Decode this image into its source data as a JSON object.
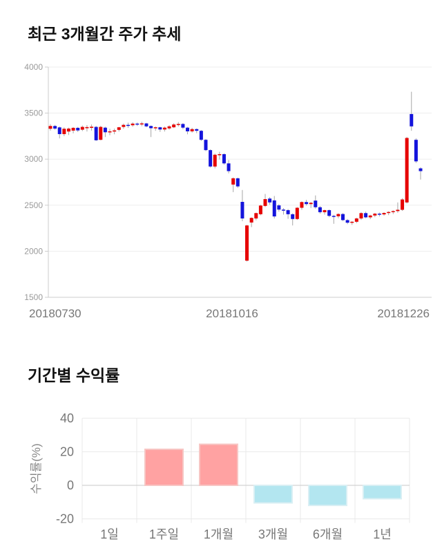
{
  "page": {
    "background": "#ffffff"
  },
  "chart_data": [
    {
      "type": "candlestick",
      "title": "최근 3개월간 주가 추세",
      "ylim": [
        1500,
        4000
      ],
      "y_ticks": [
        4000,
        3500,
        3000,
        2500,
        2000,
        1500
      ],
      "x_tick_labels": [
        "20180730",
        "20181016",
        "20181226"
      ],
      "grid": true,
      "up_color": "#e60000",
      "down_color": "#1414dc",
      "wick_color": "#a6a6a6",
      "grid_color": "#ededed",
      "axis_color": "#cccccc",
      "y_tick_color": "#999999",
      "x_tick_color": "#777777",
      "candles_ohlc": [
        [
          3330,
          3380,
          3310,
          3360
        ],
        [
          3360,
          3372,
          3318,
          3332
        ],
        [
          3345,
          3355,
          3225,
          3272
        ],
        [
          3272,
          3345,
          3250,
          3330
        ],
        [
          3300,
          3342,
          3262,
          3332
        ],
        [
          3310,
          3348,
          3280,
          3340
        ],
        [
          3340,
          3350,
          3295,
          3312
        ],
        [
          3320,
          3365,
          3305,
          3350
        ],
        [
          3336,
          3370,
          3300,
          3348
        ],
        [
          3340,
          3376,
          3310,
          3352
        ],
        [
          3350,
          3360,
          3198,
          3205
        ],
        [
          3210,
          3362,
          3205,
          3350
        ],
        [
          3342,
          3352,
          3240,
          3292
        ],
        [
          3292,
          3330,
          3260,
          3302
        ],
        [
          3300,
          3332,
          3270,
          3312
        ],
        [
          3318,
          3350,
          3300,
          3346
        ],
        [
          3350,
          3386,
          3330,
          3372
        ],
        [
          3372,
          3396,
          3340,
          3368
        ],
        [
          3368,
          3400,
          3352,
          3386
        ],
        [
          3386,
          3398,
          3360,
          3378
        ],
        [
          3378,
          3406,
          3358,
          3388
        ],
        [
          3388,
          3394,
          3346,
          3356
        ],
        [
          3360,
          3366,
          3240,
          3336
        ],
        [
          3336,
          3355,
          3308,
          3346
        ],
        [
          3346,
          3352,
          3296,
          3322
        ],
        [
          3322,
          3354,
          3300,
          3342
        ],
        [
          3334,
          3368,
          3320,
          3356
        ],
        [
          3346,
          3390,
          3338,
          3376
        ],
        [
          3376,
          3402,
          3354,
          3382
        ],
        [
          3382,
          3392,
          3326,
          3342
        ],
        [
          3342,
          3350,
          3270,
          3302
        ],
        [
          3302,
          3340,
          3288,
          3326
        ],
        [
          3326,
          3334,
          3282,
          3308
        ],
        [
          3308,
          3316,
          3198,
          3210
        ],
        [
          3210,
          3218,
          3088,
          3098
        ],
        [
          3098,
          3106,
          2908,
          2920
        ],
        [
          2920,
          3060,
          2900,
          3048
        ],
        [
          3048,
          3080,
          2996,
          3054
        ],
        [
          3054,
          3064,
          2940,
          2954
        ],
        [
          2954,
          2990,
          2846,
          2870
        ],
        [
          2724,
          2802,
          2642,
          2792
        ],
        [
          2792,
          2800,
          2688,
          2704
        ],
        [
          2536,
          2665,
          2326,
          2356
        ],
        [
          1898,
          2286,
          1888,
          2280
        ],
        [
          2312,
          2368,
          2262,
          2362
        ],
        [
          2356,
          2420,
          2336,
          2414
        ],
        [
          2402,
          2505,
          2390,
          2496
        ],
        [
          2492,
          2622,
          2480,
          2566
        ],
        [
          2572,
          2588,
          2506,
          2530
        ],
        [
          2552,
          2600,
          2356,
          2378
        ],
        [
          2498,
          2512,
          2430,
          2452
        ],
        [
          2452,
          2468,
          2398,
          2446
        ],
        [
          2446,
          2458,
          2352,
          2402
        ],
        [
          2402,
          2412,
          2280,
          2350
        ],
        [
          2350,
          2480,
          2340,
          2472
        ],
        [
          2472,
          2542,
          2450,
          2534
        ],
        [
          2534,
          2558,
          2496,
          2512
        ],
        [
          2512,
          2534,
          2470,
          2526
        ],
        [
          2550,
          2606,
          2462,
          2478
        ],
        [
          2478,
          2490,
          2408,
          2424
        ],
        [
          2424,
          2452,
          2398,
          2446
        ],
        [
          2446,
          2454,
          2370,
          2384
        ],
        [
          2384,
          2396,
          2298,
          2380
        ],
        [
          2380,
          2412,
          2358,
          2404
        ],
        [
          2404,
          2414,
          2328,
          2338
        ],
        [
          2338,
          2350,
          2294,
          2310
        ],
        [
          2310,
          2326,
          2286,
          2320
        ],
        [
          2320,
          2364,
          2306,
          2356
        ],
        [
          2356,
          2424,
          2340,
          2414
        ],
        [
          2414,
          2430,
          2358,
          2368
        ],
        [
          2368,
          2396,
          2348,
          2388
        ],
        [
          2388,
          2416,
          2370,
          2408
        ],
        [
          2408,
          2420,
          2378,
          2400
        ],
        [
          2400,
          2422,
          2386,
          2416
        ],
        [
          2416,
          2434,
          2392,
          2426
        ],
        [
          2426,
          2444,
          2404,
          2436
        ],
        [
          2436,
          2530,
          2418,
          2450
        ],
        [
          2450,
          2576,
          2438,
          2562
        ],
        [
          2530,
          3242,
          2518,
          3230
        ],
        [
          3490,
          3732,
          3308,
          3356
        ],
        [
          3210,
          3226,
          2958,
          2976
        ],
        [
          2900,
          2912,
          2778,
          2870
        ]
      ]
    },
    {
      "type": "bar",
      "title": "기간별 수익률",
      "ylabel": "수익률(%)",
      "categories": [
        "1일",
        "1주일",
        "1개월",
        "3개월",
        "6개월",
        "1년"
      ],
      "values": [
        0,
        21.5,
        24.5,
        -10.5,
        -12,
        -8
      ],
      "y_ticks": [
        40,
        20,
        0,
        -20
      ],
      "ylim": [
        -20,
        40
      ],
      "grid": true,
      "legend": "none",
      "positive_color": "#ffa2a2",
      "positive_border": "#f7c6c4",
      "negative_color": "#b3e6f0",
      "negative_border": "#d9eff4",
      "grid_color": "#e9e9e9",
      "zero_line_color": "#c9c9c9",
      "tick_color": "#777777",
      "ylabel_color": "#888888"
    }
  ]
}
